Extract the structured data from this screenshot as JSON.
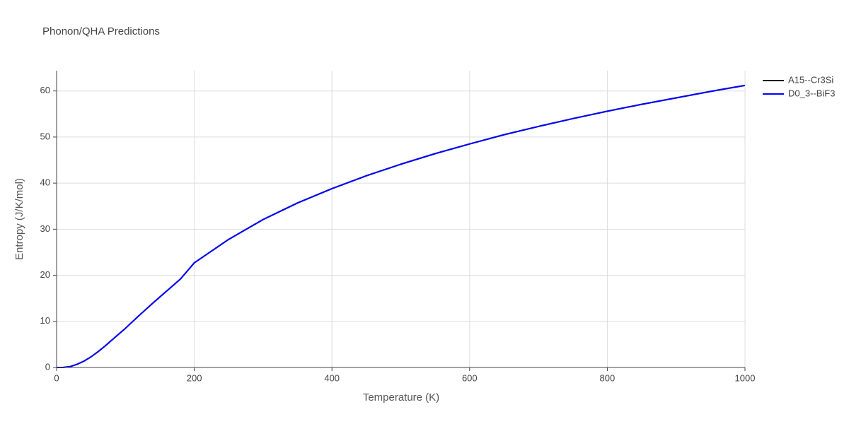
{
  "chart_data": {
    "type": "line",
    "title": "Phonon/QHA Predictions",
    "x_label": "Temperature (K)",
    "y_label": "Entropy (J/K/mol)",
    "x": [
      0,
      10,
      20,
      30,
      40,
      50,
      60,
      70,
      80,
      90,
      100,
      120,
      140,
      160,
      180,
      200,
      250,
      300,
      350,
      400,
      450,
      500,
      550,
      600,
      650,
      700,
      750,
      800,
      850,
      900,
      950,
      1000
    ],
    "series": [
      {
        "name": "A15--Cr3Si",
        "color": "#000000",
        "values": [
          0,
          0.02,
          0.2,
          0.7,
          1.4,
          2.3,
          3.4,
          4.6,
          5.9,
          7.2,
          8.5,
          11.3,
          14.0,
          16.6,
          19.2,
          22.7,
          27.8,
          32.1,
          35.7,
          38.8,
          41.6,
          44.1,
          46.4,
          48.5,
          50.5,
          52.3,
          54.0,
          55.6,
          57.1,
          58.5,
          59.9,
          61.2
        ]
      },
      {
        "name": "D0_3--BiF3",
        "color": "#0000ff",
        "values": [
          0,
          0.02,
          0.2,
          0.7,
          1.4,
          2.3,
          3.4,
          4.6,
          5.9,
          7.2,
          8.5,
          11.3,
          14.0,
          16.6,
          19.2,
          22.7,
          27.8,
          32.1,
          35.7,
          38.8,
          41.6,
          44.1,
          46.4,
          48.5,
          50.5,
          52.3,
          54.0,
          55.6,
          57.1,
          58.5,
          59.9,
          61.2
        ]
      }
    ],
    "xlim": [
      0,
      1000
    ],
    "xticks": [
      0,
      200,
      400,
      600,
      800,
      1000
    ],
    "ylim": [
      0,
      64.4
    ],
    "yticks": [
      0,
      10,
      20,
      30,
      40,
      50,
      60
    ],
    "grid": true,
    "legend": "top-right"
  }
}
